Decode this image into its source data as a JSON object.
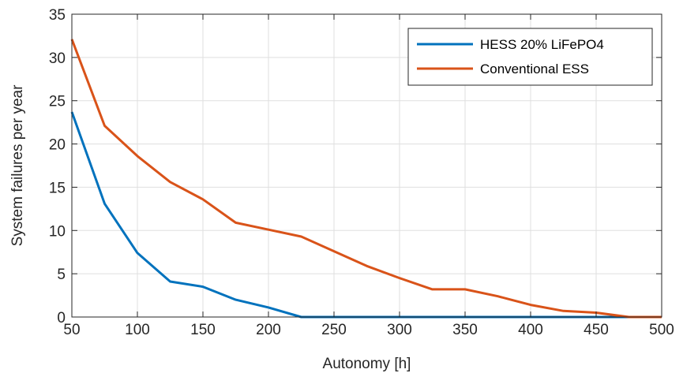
{
  "chart_data": {
    "type": "line",
    "title": "",
    "xlabel": "Autonomy [h]",
    "ylabel": "System failures per year",
    "xlim": [
      50,
      500
    ],
    "ylim": [
      0,
      35
    ],
    "xticks": [
      50,
      100,
      150,
      200,
      250,
      300,
      350,
      400,
      450,
      500
    ],
    "yticks": [
      0,
      5,
      10,
      15,
      20,
      25,
      30,
      35
    ],
    "grid": true,
    "legend_position": "top-right",
    "series": [
      {
        "name": "HESS 20% LiFePO4",
        "color": "#0072BD",
        "x": [
          50,
          75,
          100,
          125,
          150,
          175,
          200,
          225,
          250,
          275,
          300,
          325,
          350,
          375,
          400,
          425,
          450,
          475,
          500
        ],
        "y": [
          23.7,
          13.1,
          7.4,
          4.1,
          3.5,
          2.0,
          1.1,
          0,
          0,
          0,
          0,
          0,
          0,
          0,
          0,
          0,
          0,
          0,
          0
        ]
      },
      {
        "name": "Conventional ESS",
        "color": "#D95319",
        "x": [
          50,
          75,
          100,
          125,
          150,
          175,
          200,
          225,
          250,
          275,
          300,
          325,
          350,
          375,
          400,
          425,
          450,
          475,
          500
        ],
        "y": [
          32.1,
          22.1,
          18.6,
          15.6,
          13.6,
          10.9,
          10.1,
          9.3,
          7.6,
          5.9,
          4.5,
          3.2,
          3.2,
          2.4,
          1.4,
          0.7,
          0.5,
          0,
          0
        ]
      }
    ]
  }
}
